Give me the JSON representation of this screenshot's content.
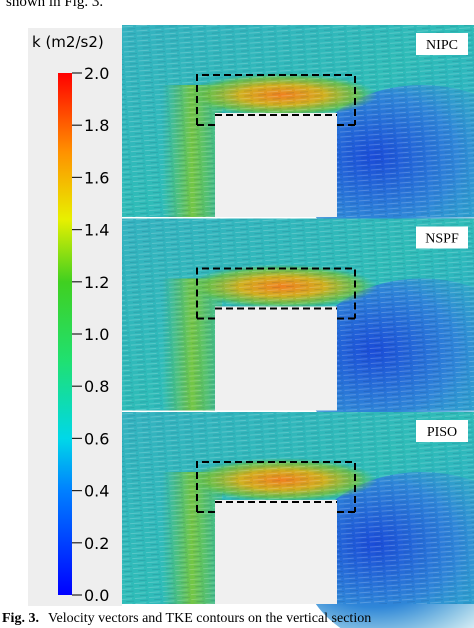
{
  "header": {
    "text": "shown in Fig. 3."
  },
  "colorbar": {
    "title": "k (m2/s2)",
    "range": [
      0,
      2
    ],
    "ticks": [
      {
        "value": 2,
        "label": "2.0"
      },
      {
        "value": 1.8,
        "label": "1.8"
      },
      {
        "value": 1.6,
        "label": "1.6"
      },
      {
        "value": 1.4,
        "label": "1.4"
      },
      {
        "value": 1.2,
        "label": "1.2"
      },
      {
        "value": 1,
        "label": "1.0"
      },
      {
        "value": 0.8,
        "label": "0.8"
      },
      {
        "value": 0.6,
        "label": "0.6"
      },
      {
        "value": 0.4,
        "label": "0.4"
      },
      {
        "value": 0.2,
        "label": "0.2"
      },
      {
        "value": 0,
        "label": "0.0"
      }
    ]
  },
  "panels": [
    {
      "label": "NIPC"
    },
    {
      "label": "NSPF"
    },
    {
      "label": "PISO"
    }
  ],
  "caption": {
    "label": "Fig. 3.",
    "text": "Velocity vectors and TKE contours on the vertical section"
  }
}
